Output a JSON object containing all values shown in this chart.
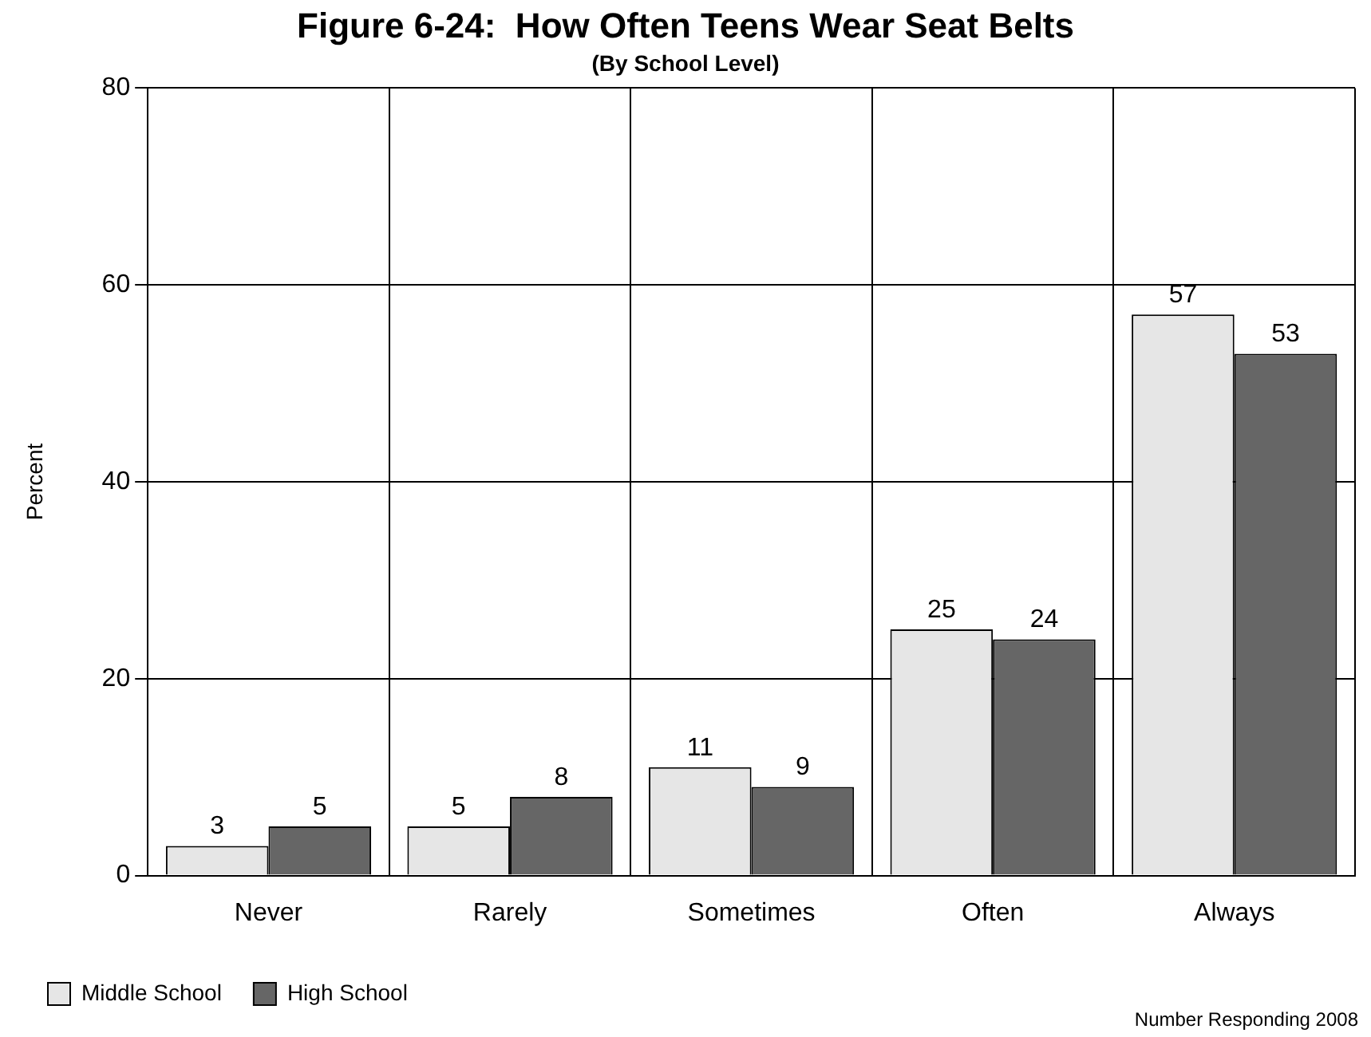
{
  "chart_data": {
    "type": "bar",
    "title": "Figure 6-24:  How Often Teens Wear Seat Belts",
    "subtitle": "(By School Level)",
    "ylabel": "Percent",
    "categories": [
      "Never",
      "Rarely",
      "Sometimes",
      "Often",
      "Always"
    ],
    "series": [
      {
        "name": "Middle School",
        "color": "#e6e6e6",
        "values": [
          3,
          5,
          11,
          25,
          57
        ]
      },
      {
        "name": "High School",
        "color": "#666666",
        "values": [
          5,
          8,
          9,
          24,
          53
        ]
      }
    ],
    "ylim": [
      0,
      80
    ],
    "yticks": [
      0,
      20,
      40,
      60,
      80
    ],
    "grid": true,
    "legend": "bottom left",
    "data_labels": true,
    "annotations": [
      "Number Responding 2008"
    ]
  }
}
